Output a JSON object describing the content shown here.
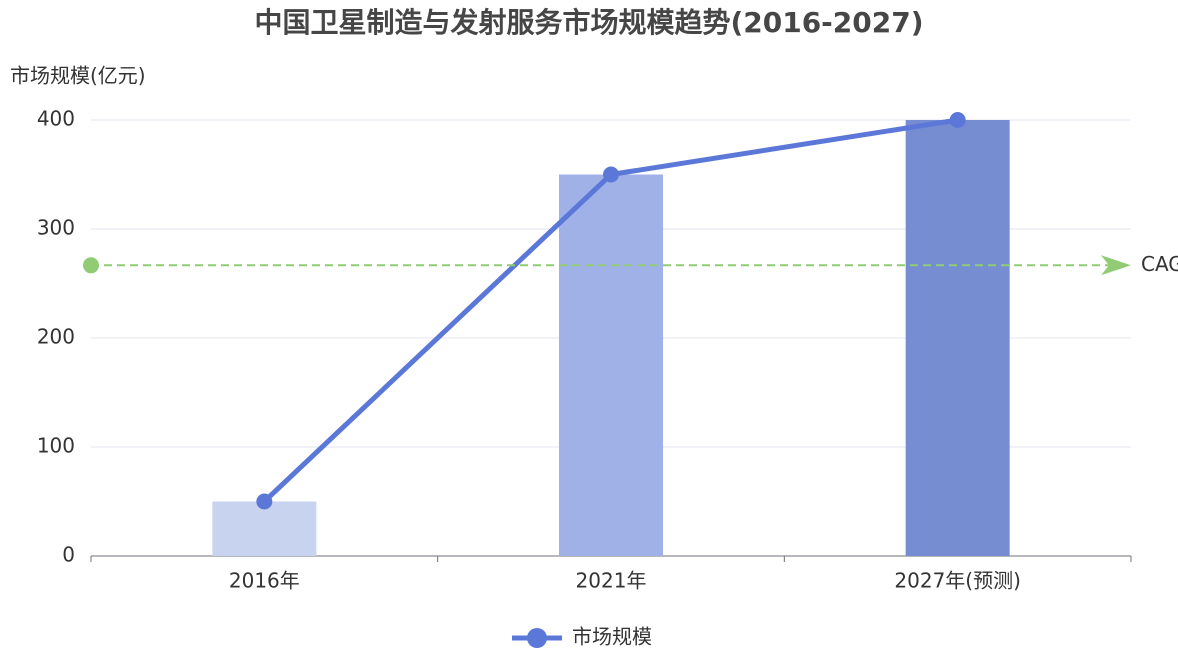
{
  "chart_data": {
    "type": "bar",
    "title": "中国卫星制造与发射服务市场规模趋势(2016-2027)",
    "y_axis_label": "市场规模(亿元)",
    "categories": [
      "2016年",
      "2021年",
      "2027年(预测)"
    ],
    "series": [
      {
        "name": "市场规模",
        "color": "#5b78d8",
        "values": [
          50,
          350,
          400
        ],
        "bar_colors": [
          "#c8d3ef",
          "#a0b1e8",
          "#768dd1"
        ]
      }
    ],
    "mark_line": {
      "value": 266.7,
      "label": "CAGR",
      "color": "#91cc75"
    },
    "ylim": [
      0,
      400
    ],
    "yticks": [
      0,
      100,
      200,
      300,
      400
    ],
    "grid": true
  }
}
